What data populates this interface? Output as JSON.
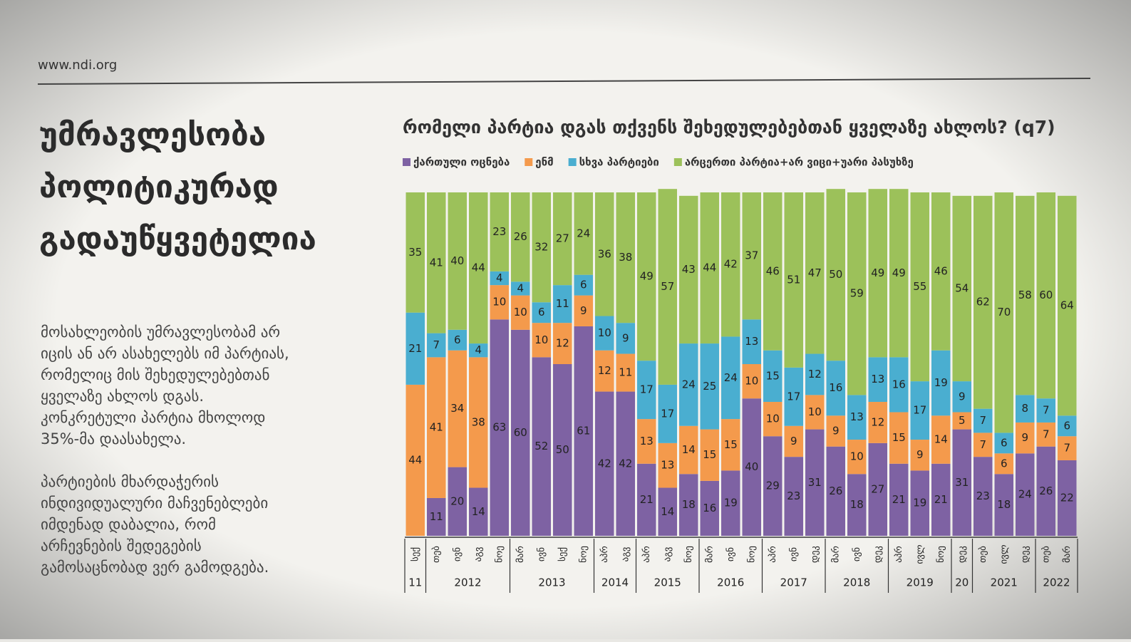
{
  "header": {
    "site": "www.ndi.org"
  },
  "left": {
    "title_lines": [
      "უმრავლესობა",
      "პოლიტიკურად",
      "გადაუწყვეტელია"
    ],
    "paragraphs": [
      [
        "მოსახლეობის უმრავლესობამ არ",
        "იცის ან არ ასახელებს იმ პარტიას,",
        "რომელიც მის შეხედულებებთან",
        "ყველაზე ახლოს დგას.",
        "კონკრეტული პარტია მხოლოდ",
        "35%-მა დაასახელა."
      ],
      [
        "პარტიების მხარდაჭერის",
        "ინდივიდუალური მაჩვენებლები",
        "იმდენად დაბალია, რომ",
        "არჩევნების შედეგების",
        "გამოსაცნობად ვერ გამოდგება."
      ]
    ]
  },
  "chart_data": {
    "type": "stacked-bar",
    "title": "რომელი პარტია დგას თქვენს შეხედულებებთან ყველაზე ახლოს? (q7)",
    "categories": [
      "სექ",
      "თებ",
      "ივნ",
      "აგვ",
      "ნოე",
      "მარ",
      "ივნ",
      "სექ",
      "ნოე",
      "აპრ",
      "აგვ",
      "აპრ",
      "აგვ",
      "ნოე",
      "მარ",
      "ივნ",
      "ნოე",
      "აპრ",
      "ივნ",
      "დეკ",
      "მარ",
      "ივნ",
      "დეკ",
      "აპრ",
      "ივლ",
      "ნოე",
      "დეკ",
      "თებ",
      "ივლ",
      "დეკ",
      "თებ",
      "მარ"
    ],
    "x_groups": [
      {
        "label": "11",
        "span": 1
      },
      {
        "label": "2012",
        "span": 4
      },
      {
        "label": "2013",
        "span": 4
      },
      {
        "label": "2014",
        "span": 2
      },
      {
        "label": "2015",
        "span": 3
      },
      {
        "label": "2016",
        "span": 3
      },
      {
        "label": "2017",
        "span": 3
      },
      {
        "label": "2018",
        "span": 3
      },
      {
        "label": "2019",
        "span": 3
      },
      {
        "label": "20",
        "span": 1
      },
      {
        "label": "2021",
        "span": 3
      },
      {
        "label": "2022",
        "span": 2
      }
    ],
    "ylim": [
      0,
      100
    ],
    "series": [
      {
        "name": "ქართული ოცნება",
        "color": "#7e62a3",
        "values": [
          null,
          11,
          20,
          14,
          63,
          60,
          52,
          50,
          61,
          42,
          42,
          21,
          14,
          18,
          16,
          19,
          40,
          29,
          23,
          31,
          26,
          18,
          27,
          21,
          19,
          21,
          31,
          23,
          18,
          24,
          26,
          22
        ]
      },
      {
        "name": "ენმ",
        "color": "#f49a4c",
        "values": [
          44,
          41,
          34,
          38,
          10,
          10,
          10,
          12,
          9,
          12,
          11,
          13,
          13,
          14,
          15,
          15,
          10,
          10,
          9,
          10,
          9,
          10,
          12,
          15,
          9,
          14,
          5,
          7,
          6,
          9,
          7,
          7
        ]
      },
      {
        "name": "სხვა პარტიები",
        "color": "#4aaed0",
        "values": [
          21,
          7,
          6,
          4,
          4,
          4,
          6,
          11,
          6,
          10,
          9,
          17,
          17,
          24,
          25,
          24,
          13,
          15,
          17,
          12,
          16,
          13,
          13,
          16,
          17,
          19,
          9,
          7,
          6,
          8,
          7,
          6
        ]
      },
      {
        "name": "არცერთი პარტია+არ ვიცი+უარი პასუხზე",
        "color": "#9cc15a",
        "values": [
          35,
          41,
          40,
          44,
          23,
          26,
          32,
          27,
          24,
          36,
          38,
          49,
          57,
          43,
          44,
          42,
          37,
          46,
          51,
          47,
          50,
          59,
          49,
          49,
          55,
          46,
          54,
          62,
          70,
          58,
          60,
          64
        ]
      }
    ]
  }
}
